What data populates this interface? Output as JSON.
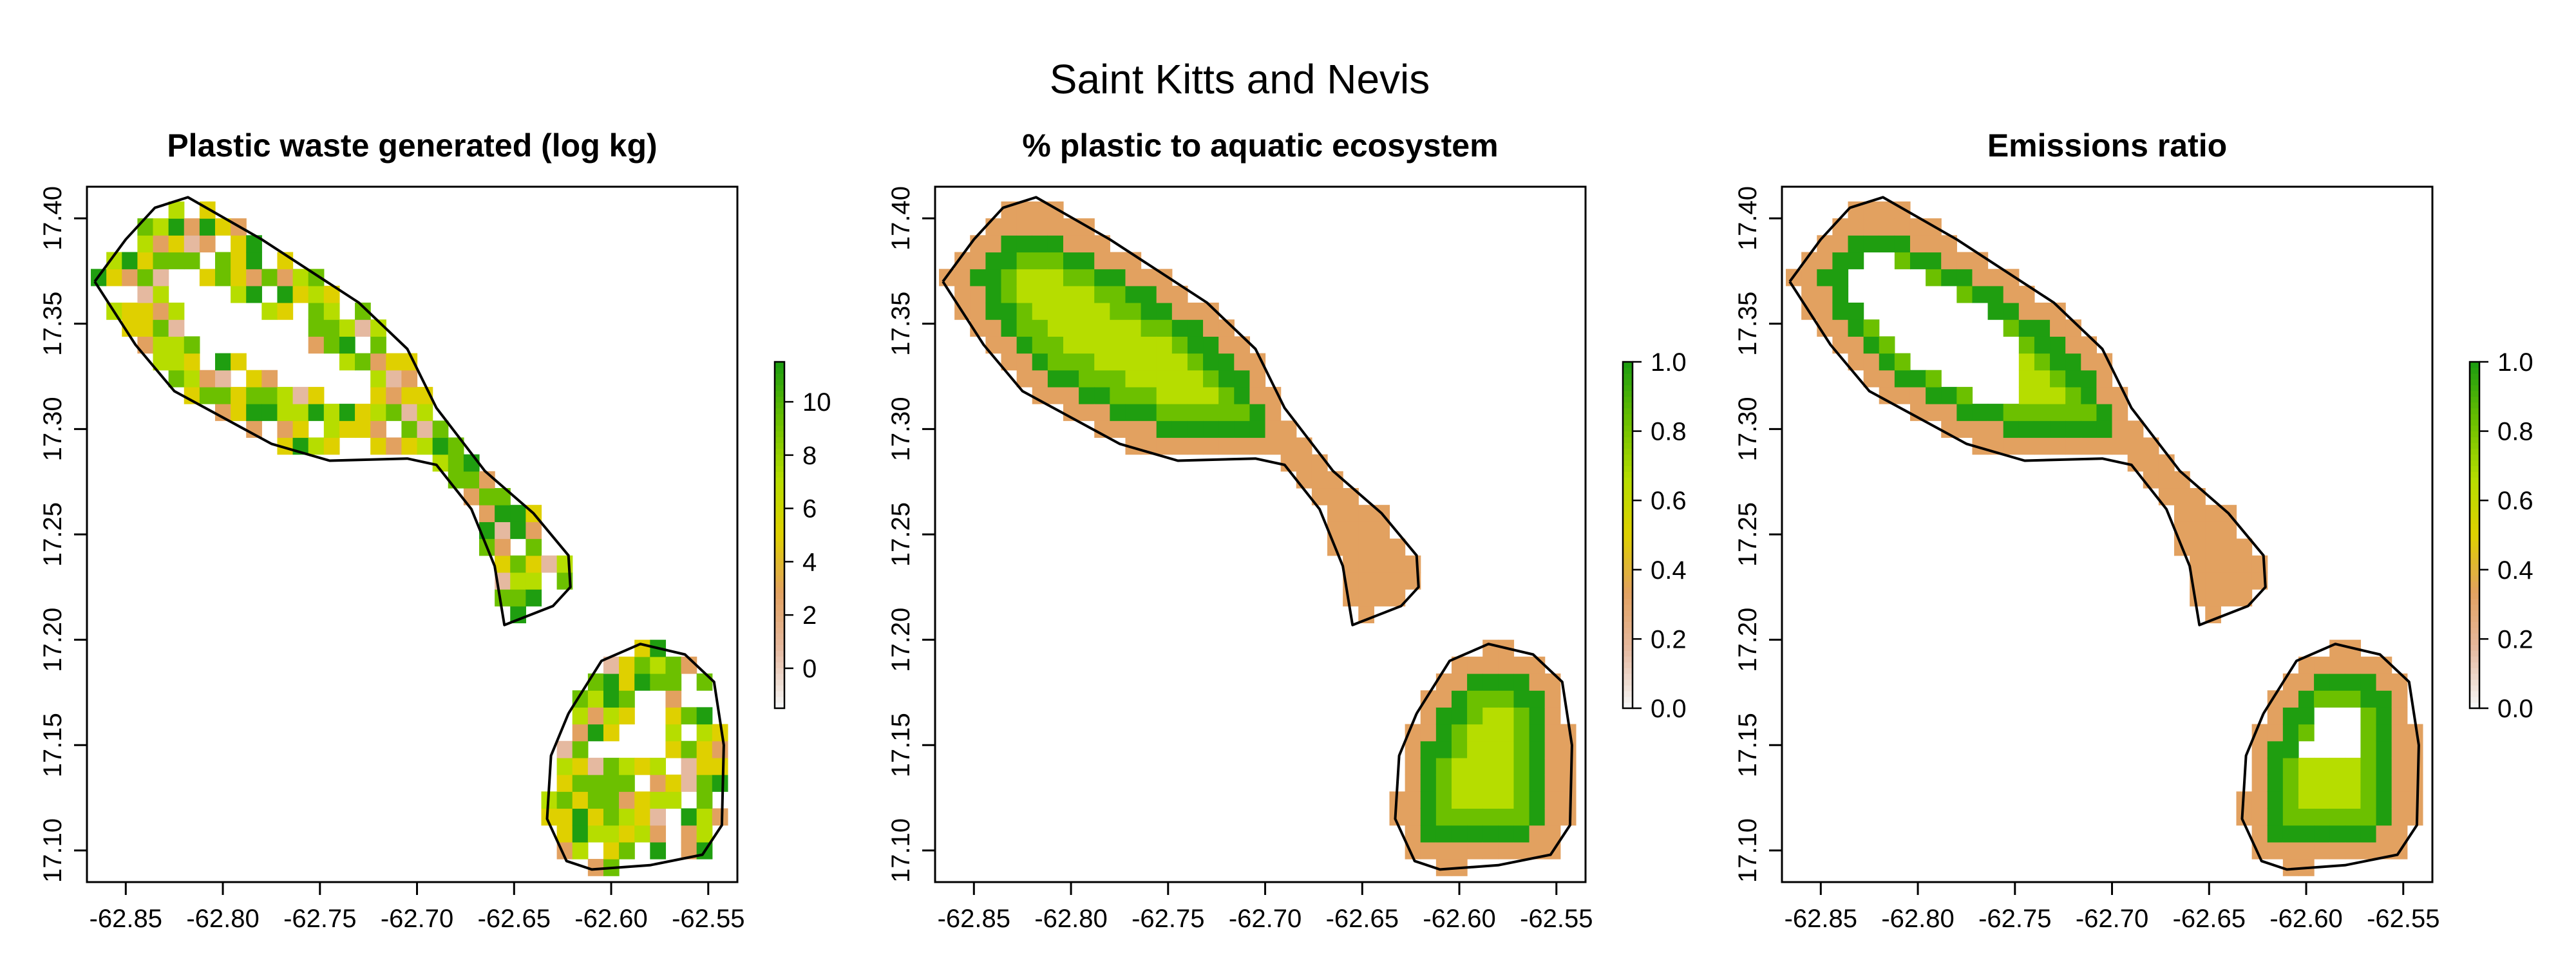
{
  "page": {
    "title": "Saint Kitts and Nevis"
  },
  "chart_data": [
    {
      "type": "heatmap",
      "title": "Plastic waste generated (log kg)",
      "xlabel": "",
      "ylabel": "",
      "xlim": [
        -62.87,
        -62.535
      ],
      "ylim": [
        17.085,
        17.415
      ],
      "x_ticks": [
        -62.85,
        -62.8,
        -62.75,
        -62.7,
        -62.65,
        -62.6,
        -62.55
      ],
      "x_tick_labels": [
        "-62.85",
        "-62.80",
        "-62.75",
        "-62.70",
        "-62.65",
        "-62.60",
        "-62.55"
      ],
      "y_ticks": [
        17.1,
        17.15,
        17.2,
        17.25,
        17.3,
        17.35,
        17.4
      ],
      "y_tick_labels": [
        "17.10",
        "17.15",
        "17.20",
        "17.25",
        "17.30",
        "17.35",
        "17.40"
      ],
      "legend": {
        "placement": "right",
        "min": -1.5,
        "max": 11.5,
        "ticks": [
          0,
          2,
          4,
          6,
          8,
          10
        ],
        "tick_labels": [
          "0",
          "2",
          "4",
          "6",
          "8",
          "10"
        ]
      },
      "color_scale": [
        "#f5f5f5",
        "#e5b9a0",
        "#e2a160",
        "#dfd000",
        "#b6dd00",
        "#6cc000",
        "#1f9e10"
      ],
      "fill_mode": "mixed",
      "grid": false
    },
    {
      "type": "heatmap",
      "title": "% plastic to aquatic ecosystem",
      "xlabel": "",
      "ylabel": "",
      "xlim": [
        -62.87,
        -62.535
      ],
      "ylim": [
        17.085,
        17.415
      ],
      "x_ticks": [
        -62.85,
        -62.8,
        -62.75,
        -62.7,
        -62.65,
        -62.6,
        -62.55
      ],
      "x_tick_labels": [
        "-62.85",
        "-62.80",
        "-62.75",
        "-62.70",
        "-62.65",
        "-62.60",
        "-62.55"
      ],
      "y_ticks": [
        17.1,
        17.15,
        17.2,
        17.25,
        17.3,
        17.35,
        17.4
      ],
      "y_tick_labels": [
        "17.10",
        "17.15",
        "17.20",
        "17.25",
        "17.30",
        "17.35",
        "17.40"
      ],
      "legend": {
        "placement": "right",
        "min": 0.0,
        "max": 1.0,
        "ticks": [
          0.0,
          0.2,
          0.4,
          0.6,
          0.8,
          1.0
        ],
        "tick_labels": [
          "0.0",
          "0.2",
          "0.4",
          "0.6",
          "0.8",
          "1.0"
        ]
      },
      "color_scale": [
        "#f5f5f5",
        "#e5b9a0",
        "#e2a160",
        "#dfd000",
        "#b6dd00",
        "#6cc000",
        "#1f9e10"
      ],
      "fill_mode": "full",
      "grid": false
    },
    {
      "type": "heatmap",
      "title": "Emissions ratio",
      "xlabel": "",
      "ylabel": "",
      "xlim": [
        -62.87,
        -62.535
      ],
      "ylim": [
        17.085,
        17.415
      ],
      "x_ticks": [
        -62.85,
        -62.8,
        -62.75,
        -62.7,
        -62.65,
        -62.6,
        -62.55
      ],
      "x_tick_labels": [
        "-62.85",
        "-62.80",
        "-62.75",
        "-62.70",
        "-62.65",
        "-62.60",
        "-62.55"
      ],
      "y_ticks": [
        17.1,
        17.15,
        17.2,
        17.25,
        17.3,
        17.35,
        17.4
      ],
      "y_tick_labels": [
        "17.10",
        "17.15",
        "17.20",
        "17.25",
        "17.30",
        "17.35",
        "17.40"
      ],
      "legend": {
        "placement": "right",
        "min": 0.0,
        "max": 1.0,
        "ticks": [
          0.0,
          0.2,
          0.4,
          0.6,
          0.8,
          1.0
        ],
        "tick_labels": [
          "0.0",
          "0.2",
          "0.4",
          "0.6",
          "0.8",
          "1.0"
        ]
      },
      "color_scale": [
        "#f5f5f5",
        "#e5b9a0",
        "#e2a160",
        "#dfd000",
        "#b6dd00",
        "#6cc000",
        "#1f9e10"
      ],
      "fill_mode": "holes",
      "grid": false
    }
  ],
  "outline": {
    "color": "#000000",
    "st_kitts": [
      [
        -62.866,
        17.37
      ],
      [
        -62.85,
        17.39
      ],
      [
        -62.835,
        17.405
      ],
      [
        -62.818,
        17.41
      ],
      [
        -62.78,
        17.39
      ],
      [
        -62.73,
        17.36
      ],
      [
        -62.705,
        17.338
      ],
      [
        -62.69,
        17.31
      ],
      [
        -62.665,
        17.28
      ],
      [
        -62.64,
        17.26
      ],
      [
        -62.622,
        17.24
      ],
      [
        -62.621,
        17.225
      ],
      [
        -62.63,
        17.216
      ],
      [
        -62.655,
        17.207
      ],
      [
        -62.66,
        17.235
      ],
      [
        -62.672,
        17.262
      ],
      [
        -62.69,
        17.283
      ],
      [
        -62.705,
        17.286
      ],
      [
        -62.745,
        17.285
      ],
      [
        -62.775,
        17.293
      ],
      [
        -62.825,
        17.318
      ],
      [
        -62.845,
        17.34
      ],
      [
        -62.866,
        17.37
      ]
    ],
    "nevis": [
      [
        -62.622,
        17.165
      ],
      [
        -62.605,
        17.19
      ],
      [
        -62.585,
        17.198
      ],
      [
        -62.562,
        17.193
      ],
      [
        -62.547,
        17.18
      ],
      [
        -62.542,
        17.15
      ],
      [
        -62.543,
        17.112
      ],
      [
        -62.553,
        17.098
      ],
      [
        -62.58,
        17.093
      ],
      [
        -62.61,
        17.091
      ],
      [
        -62.623,
        17.095
      ],
      [
        -62.633,
        17.115
      ],
      [
        -62.631,
        17.145
      ],
      [
        -62.622,
        17.165
      ]
    ]
  }
}
